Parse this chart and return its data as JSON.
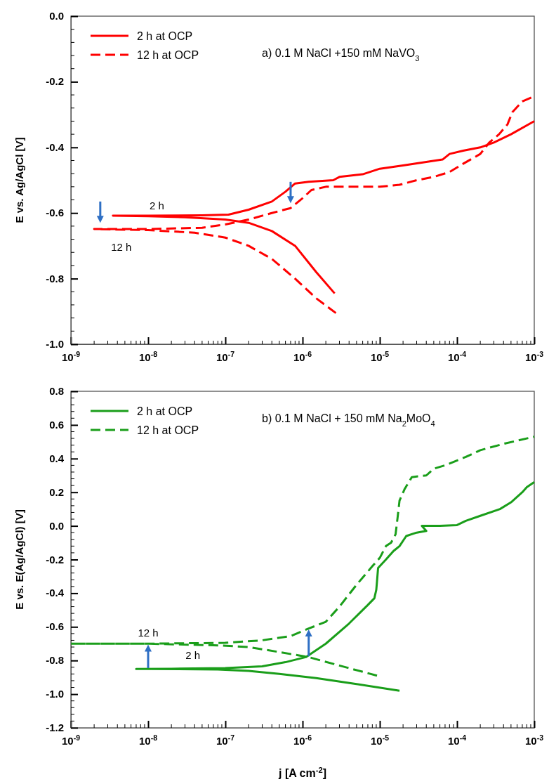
{
  "chart_data": [
    {
      "type": "line",
      "title": "a) 0.1 M NaCl +150 mM NaVO$_{3}$",
      "ylabel": "E vs. Ag/AgCl [V]",
      "log": "x",
      "legend": "top left",
      "grid": false,
      "xlim": [
        1e-09,
        0.001
      ],
      "xticks": [
        {
          "value": 1e-09,
          "label": "10$^{-9}$"
        },
        {
          "value": 1e-08,
          "label": "10$^{-8}$"
        },
        {
          "value": 1e-07,
          "label": "10$^{-7}$"
        },
        {
          "value": 1e-06,
          "label": "10$^{-6}$"
        },
        {
          "value": 1e-05,
          "label": "10$^{-5}$"
        },
        {
          "value": 0.0001,
          "label": "10$^{-4}$"
        },
        {
          "value": 0.001,
          "label": "10$^{-3}$"
        }
      ],
      "ylim": [
        -1.0,
        0.0
      ],
      "yticks": [
        {
          "value": -1.0,
          "label": "-1.0"
        },
        {
          "value": -0.8,
          "label": "-0.8"
        },
        {
          "value": -0.6,
          "label": "-0.6"
        },
        {
          "value": -0.4,
          "label": "-0.4"
        },
        {
          "value": -0.2,
          "label": "-0.2"
        },
        {
          "value": 0.0,
          "label": "0.0"
        }
      ],
      "series": [
        {
          "name": "2 h at OCP",
          "color": "#ff0000",
          "line_style": "solid",
          "x": [
            2.6e-06,
            1.5e-06,
            8e-07,
            4e-07,
            2e-07,
            1e-07,
            3e-08,
            1e-08,
            3.5e-09,
            1e-08,
            5e-08,
            1.1e-07,
            2e-07,
            4e-07,
            6e-07,
            8e-07,
            1.2e-06,
            2.5e-06,
            3e-06,
            6e-06,
            1e-05,
            2e-05,
            6.5e-05,
            8e-05,
            0.00012,
            0.0002,
            0.0003,
            0.0005,
            0.001
          ],
          "values": [
            -0.845,
            -0.78,
            -0.7,
            -0.655,
            -0.63,
            -0.62,
            -0.613,
            -0.61,
            -0.608,
            -0.608,
            -0.607,
            -0.605,
            -0.59,
            -0.565,
            -0.535,
            -0.51,
            -0.505,
            -0.5,
            -0.49,
            -0.482,
            -0.465,
            -0.455,
            -0.437,
            -0.42,
            -0.41,
            -0.4,
            -0.385,
            -0.36,
            -0.32
          ]
        },
        {
          "name": "12 h at OCP",
          "color": "#ff0000",
          "line_style": "dashed",
          "x": [
            2.7e-06,
            1.5e-06,
            8e-07,
            4e-07,
            2e-07,
            1e-07,
            4e-08,
            1e-08,
            2e-09,
            1e-08,
            5e-08,
            1e-07,
            2e-07,
            4e-07,
            7e-07,
            1e-06,
            1.3e-06,
            2e-06,
            1e-05,
            1.8e-05,
            3e-05,
            5e-05,
            8e-05,
            0.00012,
            0.0002,
            0.00026,
            0.00035,
            0.00045,
            0.00052,
            0.0007,
            0.001
          ],
          "values": [
            -0.905,
            -0.86,
            -0.8,
            -0.74,
            -0.7,
            -0.675,
            -0.66,
            -0.652,
            -0.649,
            -0.649,
            -0.645,
            -0.635,
            -0.62,
            -0.6,
            -0.585,
            -0.555,
            -0.53,
            -0.52,
            -0.52,
            -0.514,
            -0.5,
            -0.49,
            -0.475,
            -0.45,
            -0.42,
            -0.386,
            -0.36,
            -0.33,
            -0.293,
            -0.26,
            -0.244
          ]
        }
      ],
      "annotations": [
        {
          "text": "2 h",
          "x": 1.3e-08,
          "y": -0.61
        },
        {
          "text": "12 h",
          "x": 4.5e-09,
          "y": -0.65
        }
      ]
    },
    {
      "type": "line",
      "title": "b) 0.1 M NaCl + 150 mM Na$_{2}$MoO$_{4}$",
      "xlabel": "j [A cm$^{-2}$]",
      "ylabel": "E vs. E(Ag/AgCl) [V]",
      "log": "x",
      "legend": "top left",
      "grid": false,
      "xlim": [
        1e-09,
        0.001
      ],
      "xticks": [
        {
          "value": 1e-09,
          "label": "10$^{-9}$"
        },
        {
          "value": 1e-08,
          "label": "10$^{-8}$"
        },
        {
          "value": 1e-07,
          "label": "10$^{-7}$"
        },
        {
          "value": 1e-06,
          "label": "10$^{-6}$"
        },
        {
          "value": 1e-05,
          "label": "10$^{-5}$"
        },
        {
          "value": 0.0001,
          "label": "10$^{-4}$"
        },
        {
          "value": 0.001,
          "label": "10$^{-3}$"
        }
      ],
      "ylim": [
        -1.2,
        0.8
      ],
      "yticks": [
        {
          "value": -1.2,
          "label": "-1.2"
        },
        {
          "value": -1.0,
          "label": "-1.0"
        },
        {
          "value": -0.8,
          "label": "-0.8"
        },
        {
          "value": -0.6,
          "label": "-0.6"
        },
        {
          "value": -0.4,
          "label": "-0.4"
        },
        {
          "value": -0.2,
          "label": "-0.2"
        },
        {
          "value": 0.0,
          "label": "0.0"
        },
        {
          "value": 0.2,
          "label": "0.2"
        },
        {
          "value": 0.4,
          "label": "0.4"
        },
        {
          "value": 0.6,
          "label": "0.6"
        },
        {
          "value": 0.8,
          "label": "0.8"
        }
      ],
      "series": [
        {
          "name": "2 h at OCP",
          "color": "#1a9e1a",
          "line_style": "solid",
          "x": [
            1.8e-05,
            5e-06,
            1.5e-06,
            5e-07,
            2e-07,
            8e-08,
            1e-08,
            7e-09,
            2e-08,
            1e-07,
            3e-07,
            6e-07,
            1.1e-06,
            2e-06,
            4e-06,
            7e-06,
            8.5e-06,
            9e-06,
            9.2e-06,
            9.5e-06,
            1.2e-05,
            1.5e-05,
            1.8e-05,
            2.2e-05,
            3e-05,
            4e-05,
            3.5e-05,
            6e-05,
            0.0001,
            0.00013,
            0.0002,
            0.00036,
            0.0005,
            0.0007,
            0.0008,
            0.001
          ],
          "values": [
            -0.98,
            -0.94,
            -0.905,
            -0.88,
            -0.862,
            -0.853,
            -0.85,
            -0.85,
            -0.849,
            -0.845,
            -0.835,
            -0.81,
            -0.78,
            -0.7,
            -0.58,
            -0.47,
            -0.43,
            -0.38,
            -0.33,
            -0.25,
            -0.2,
            -0.15,
            -0.12,
            -0.06,
            -0.04,
            -0.03,
            0.0,
            0.0,
            0.005,
            0.03,
            0.06,
            0.1,
            0.14,
            0.2,
            0.23,
            0.26
          ]
        },
        {
          "name": "12 h at OCP",
          "color": "#1a9e1a",
          "line_style": "dashed",
          "x": [
            9.2e-06,
            3e-06,
            1.2e-06,
            5e-07,
            2e-07,
            8e-08,
            1e-08,
            1e-09,
            1e-08,
            1e-07,
            3e-07,
            7e-07,
            1.2e-06,
            2e-06,
            3e-06,
            5e-06,
            8e-06,
            1e-05,
            1.2e-05,
            1.4e-05,
            1.6e-05,
            1.7e-05,
            1.8e-05,
            2.1e-05,
            2.6e-05,
            4e-05,
            5e-05,
            7e-05,
            0.00013,
            0.0002,
            0.00042,
            0.001
          ],
          "values": [
            -0.89,
            -0.83,
            -0.78,
            -0.75,
            -0.72,
            -0.71,
            -0.7,
            -0.7,
            -0.7,
            -0.695,
            -0.68,
            -0.655,
            -0.61,
            -0.57,
            -0.48,
            -0.35,
            -0.24,
            -0.19,
            -0.12,
            -0.1,
            -0.05,
            0.05,
            0.15,
            0.22,
            0.29,
            0.3,
            0.34,
            0.36,
            0.41,
            0.45,
            0.49,
            0.53
          ]
        }
      ],
      "annotations": [
        {
          "text": "12 h",
          "x": 1e-08,
          "y": -0.7
        },
        {
          "text": "2 h",
          "x": 3.8e-08,
          "y": -0.85
        }
      ]
    }
  ]
}
